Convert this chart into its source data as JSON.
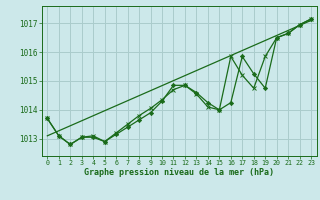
{
  "title": "Graphe pression niveau de la mer (hPa)",
  "background_color": "#cce8ea",
  "grid_color": "#aacccc",
  "line_color": "#1a6b1a",
  "x_ticks": [
    0,
    1,
    2,
    3,
    4,
    5,
    6,
    7,
    8,
    9,
    10,
    11,
    12,
    13,
    14,
    15,
    16,
    17,
    18,
    19,
    20,
    21,
    22,
    23
  ],
  "y_ticks": [
    1013,
    1014,
    1015,
    1016,
    1017
  ],
  "ylim": [
    1012.4,
    1017.6
  ],
  "xlim": [
    -0.5,
    23.5
  ],
  "series1_x": [
    0,
    1,
    2,
    3,
    4,
    5,
    6,
    7,
    8,
    9,
    10,
    11,
    12,
    13,
    14,
    15,
    16,
    17,
    18,
    19,
    20,
    21,
    22,
    23
  ],
  "series1_y": [
    1013.7,
    1013.1,
    1012.8,
    1013.05,
    1013.05,
    1012.9,
    1013.15,
    1013.4,
    1013.65,
    1013.9,
    1014.3,
    1014.85,
    1014.85,
    1014.6,
    1014.25,
    1014.0,
    1014.25,
    1015.85,
    1015.25,
    1014.75,
    1016.5,
    1016.65,
    1016.95,
    1017.15
  ],
  "series2_x": [
    0,
    1,
    2,
    3,
    4,
    5,
    6,
    7,
    8,
    9,
    10,
    11,
    12,
    13,
    14,
    15,
    16,
    17,
    18,
    19,
    20,
    21,
    22,
    23
  ],
  "series2_y": [
    1013.7,
    1013.1,
    1012.8,
    1013.05,
    1013.1,
    1012.9,
    1013.2,
    1013.5,
    1013.8,
    1014.05,
    1014.35,
    1014.7,
    1014.85,
    1014.55,
    1014.1,
    1014.0,
    1015.85,
    1015.2,
    1014.75,
    1015.85,
    1016.5,
    1016.65,
    1016.95,
    1017.15
  ],
  "trend_x": [
    0,
    23
  ],
  "trend_y": [
    1013.1,
    1017.1
  ]
}
